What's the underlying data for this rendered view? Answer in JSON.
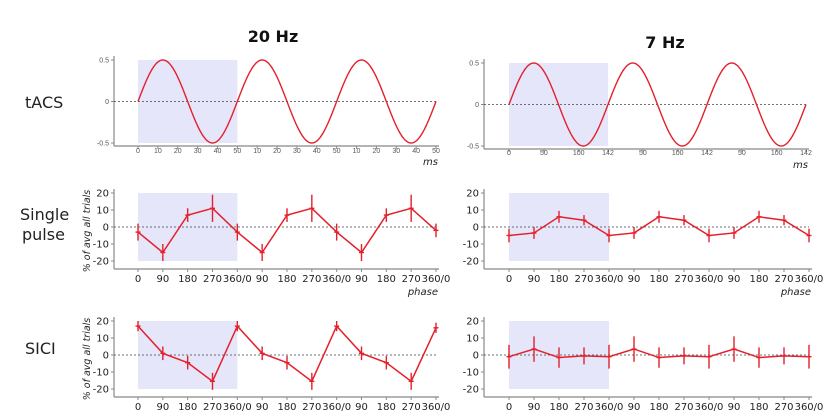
{
  "colors": {
    "line": "#e3202c",
    "shade": "#e6e6fa",
    "axis": "#888888",
    "zero_line": "#444444"
  },
  "row_labels": {
    "tacs": "tACS",
    "single_pulse_1": "Single",
    "single_pulse_2": "pulse",
    "sici": "SICI"
  },
  "column_titles": {
    "left": "20 Hz",
    "right": "7 Hz"
  },
  "chart_data": [
    {
      "id": "tacs_20hz",
      "type": "line",
      "title": "20 Hz",
      "row": "tACS",
      "xlabel": "ms",
      "ylabel": "",
      "waveform": "sine",
      "amplitude": 0.5,
      "period_ms": 50,
      "cycles": 3,
      "ylim": [
        -0.5,
        0.5
      ],
      "y_ticks": [
        "0.5",
        "0",
        "-0.5"
      ],
      "x_tick_labels": [
        "0",
        "10",
        "20",
        "30",
        "40",
        "50",
        "10",
        "20",
        "30",
        "40",
        "50",
        "10",
        "20",
        "30",
        "40",
        "50"
      ],
      "shaded_cycle": 1
    },
    {
      "id": "tacs_7hz",
      "type": "line",
      "title": "7 Hz",
      "row": "tACS",
      "xlabel": "ms",
      "ylabel": "",
      "waveform": "sine",
      "amplitude": 0.5,
      "period_ms": 142,
      "cycles": 3,
      "ylim": [
        -0.5,
        0.5
      ],
      "y_ticks": [
        "0.5",
        "0",
        "-0.5"
      ],
      "x_tick_labels": [
        "0",
        "50",
        "100",
        "142",
        "50",
        "100",
        "142",
        "50",
        "100",
        "142"
      ],
      "shaded_cycle": 1
    },
    {
      "id": "single_pulse_20hz",
      "type": "line",
      "row": "Single pulse",
      "xlabel": "phase",
      "ylabel": "% of avg all trials",
      "ylim": [
        -25,
        22
      ],
      "y_ticks": [
        "20",
        "10",
        "0",
        "-10",
        "-20"
      ],
      "categories": [
        "0",
        "90",
        "180",
        "270",
        "360/0",
        "90",
        "180",
        "270",
        "360/0",
        "90",
        "180",
        "270",
        "360/0"
      ],
      "values": [
        -3,
        -15,
        7,
        11,
        -3,
        -15,
        7,
        11,
        -3,
        -15,
        7,
        11,
        -2
      ],
      "errors": [
        5,
        5,
        4,
        8,
        5,
        5,
        4,
        8,
        5,
        5,
        4,
        8,
        4
      ],
      "shaded_cycle": 1
    },
    {
      "id": "single_pulse_7hz",
      "type": "line",
      "row": "Single pulse",
      "xlabel": "phase",
      "ylabel": "",
      "ylim": [
        -25,
        22
      ],
      "y_ticks": [
        "20",
        "10",
        "0",
        "-10",
        "-20"
      ],
      "categories": [
        "0",
        "90",
        "180",
        "270",
        "360/0",
        "90",
        "180",
        "270",
        "360/0",
        "90",
        "180",
        "270",
        "360/0"
      ],
      "values": [
        -5,
        -3.5,
        6,
        4,
        -5,
        -3.5,
        6,
        4,
        -5,
        -3.5,
        6,
        4,
        -5
      ],
      "errors": [
        4,
        3.5,
        3.5,
        3,
        4,
        3.5,
        3.5,
        3,
        4,
        3.5,
        3.5,
        3,
        4
      ],
      "shaded_cycle": 1
    },
    {
      "id": "sici_20hz",
      "type": "line",
      "row": "SICI",
      "xlabel": "",
      "ylabel": "% of avg all trials",
      "ylim": [
        -25,
        22
      ],
      "y_ticks": [
        "20",
        "10",
        "0",
        "-10",
        "-20"
      ],
      "categories": [
        "0",
        "90",
        "180",
        "270",
        "360/0",
        "90",
        "180",
        "270",
        "360/0",
        "90",
        "180",
        "270",
        "360/0"
      ],
      "values": [
        17,
        1,
        -4.5,
        -15.5,
        17,
        1,
        -4.5,
        -15.5,
        17,
        1,
        -4.5,
        -15.5,
        16
      ],
      "errors": [
        3,
        4,
        4,
        5,
        3,
        4,
        4,
        5,
        3,
        4,
        4,
        5,
        3
      ],
      "shaded_cycle": 1
    },
    {
      "id": "sici_7hz",
      "type": "line",
      "row": "SICI",
      "xlabel": "",
      "ylabel": "",
      "ylim": [
        -25,
        22
      ],
      "y_ticks": [
        "20",
        "10",
        "0",
        "-10",
        "-20"
      ],
      "categories": [
        "0",
        "90",
        "180",
        "270",
        "360/0",
        "90",
        "180",
        "270",
        "360/0",
        "90",
        "180",
        "270",
        "360/0"
      ],
      "values": [
        -1,
        3.5,
        -1.5,
        -0.5,
        -1,
        3.5,
        -1.5,
        -0.5,
        -1,
        3.5,
        -1.5,
        -0.5,
        -1
      ],
      "errors": [
        7,
        7.5,
        6,
        5,
        7,
        7.5,
        6,
        5,
        7,
        7.5,
        6,
        5,
        7
      ],
      "shaded_cycle": 1
    }
  ]
}
